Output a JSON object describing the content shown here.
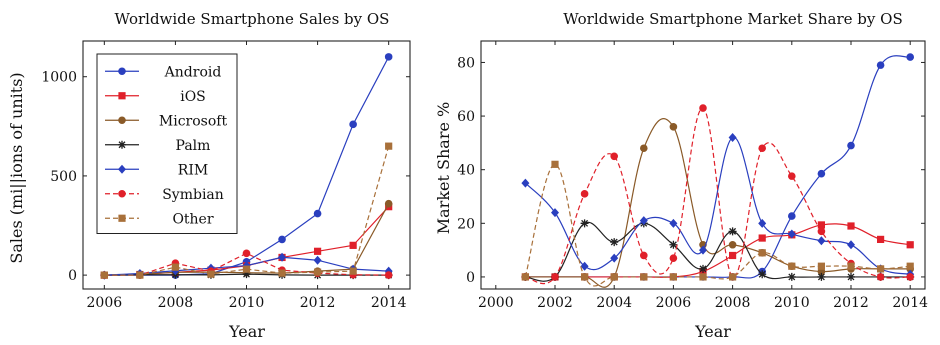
{
  "colors": {
    "Android": "#2a3fbf",
    "iOS": "#e0202a",
    "Microsoft": "#8a5a28",
    "Palm": "#222222",
    "RIM": "#2a3fbf",
    "Symbian": "#e0202a",
    "Other": "#a8703a"
  },
  "chart_data": [
    {
      "type": "line",
      "title": "Worldwide Smartphone Sales by OS",
      "xlabel": "Year",
      "ylabel": "Sales (mi||ions of units)",
      "xlim": [
        2005.4,
        2014.6
      ],
      "ylim": [
        -70,
        1180
      ],
      "xticks": [
        2006,
        2008,
        2010,
        2012,
        2014
      ],
      "yticks": [
        0,
        500,
        1000
      ],
      "grid": false,
      "legend": "top-left",
      "series": [
        {
          "name": "Android",
          "marker": "circle",
          "dash": "solid",
          "x": [
            2006,
            2007,
            2008,
            2009,
            2010,
            2011,
            2012,
            2013,
            2014
          ],
          "y": [
            0,
            0,
            0,
            7,
            67,
            180,
            310,
            760,
            1100
          ]
        },
        {
          "name": "iOS",
          "marker": "square",
          "dash": "solid",
          "x": [
            2006,
            2007,
            2008,
            2009,
            2010,
            2011,
            2012,
            2013,
            2014
          ],
          "y": [
            0,
            3,
            14,
            25,
            47,
            89,
            120,
            150,
            345
          ]
        },
        {
          "name": "Microsoft",
          "marker": "circle",
          "dash": "solid",
          "x": [
            2006,
            2007,
            2008,
            2009,
            2010,
            2011,
            2012,
            2013,
            2014
          ],
          "y": [
            0,
            5,
            14,
            15,
            12,
            10,
            20,
            30,
            360
          ]
        },
        {
          "name": "Palm",
          "marker": "star",
          "dash": "solid",
          "x": [
            2006,
            2007,
            2008,
            2009,
            2010,
            2011,
            2012,
            2013,
            2014
          ],
          "y": [
            0,
            2,
            2,
            1,
            5,
            1,
            0,
            0,
            0
          ]
        },
        {
          "name": "RIM",
          "marker": "diamond",
          "dash": "solid",
          "x": [
            2006,
            2007,
            2008,
            2009,
            2010,
            2011,
            2012,
            2013,
            2014
          ],
          "y": [
            0,
            8,
            22,
            35,
            48,
            90,
            75,
            30,
            20
          ]
        },
        {
          "name": "Symbian",
          "marker": "circle",
          "dash": "dashed",
          "x": [
            2006,
            2007,
            2008,
            2009,
            2010,
            2011,
            2012,
            2013,
            2014
          ],
          "y": [
            0,
            0,
            60,
            20,
            110,
            25,
            10,
            2,
            0
          ]
        },
        {
          "name": "Other",
          "marker": "square",
          "dash": "dashed",
          "x": [
            2006,
            2007,
            2008,
            2009,
            2010,
            2011,
            2012,
            2013,
            2014
          ],
          "y": [
            0,
            0,
            40,
            5,
            30,
            10,
            15,
            20,
            650
          ]
        }
      ]
    },
    {
      "type": "line",
      "title": "Worldwide Smartphone Market Share by OS",
      "xlabel": "Year",
      "ylabel": "Market Share %",
      "xlim": [
        1999.5,
        2014.5
      ],
      "ylim": [
        -4.5,
        88
      ],
      "xticks": [
        2000,
        2002,
        2004,
        2006,
        2008,
        2010,
        2012,
        2014
      ],
      "yticks": [
        0,
        20,
        40,
        60,
        80
      ],
      "grid": false,
      "legend": "none",
      "series": [
        {
          "name": "Android",
          "marker": "circle",
          "dash": "solid",
          "x": [
            2001,
            2002,
            2003,
            2004,
            2005,
            2006,
            2007,
            2008,
            2009,
            2010,
            2011,
            2012,
            2013,
            2014
          ],
          "y": [
            0,
            0,
            0,
            0,
            0,
            0,
            0,
            0,
            2,
            22.7,
            38.5,
            49,
            79,
            82
          ]
        },
        {
          "name": "iOS",
          "marker": "square",
          "dash": "solid",
          "x": [
            2001,
            2002,
            2003,
            2004,
            2005,
            2006,
            2007,
            2008,
            2009,
            2010,
            2011,
            2012,
            2013,
            2014
          ],
          "y": [
            0,
            0,
            0,
            0,
            0,
            0,
            2,
            8,
            14.5,
            15.7,
            19.4,
            19,
            14,
            12
          ]
        },
        {
          "name": "Microsoft",
          "marker": "circle",
          "dash": "solid",
          "x": [
            2001,
            2002,
            2003,
            2004,
            2005,
            2006,
            2007,
            2008,
            2009,
            2010,
            2011,
            2012,
            2013,
            2014
          ],
          "y": [
            0,
            0,
            0,
            0,
            48,
            56,
            12,
            12,
            9,
            4,
            2,
            3,
            3,
            3
          ]
        },
        {
          "name": "Palm",
          "marker": "star",
          "dash": "solid",
          "x": [
            2001,
            2002,
            2003,
            2004,
            2005,
            2006,
            2007,
            2008,
            2009,
            2010,
            2011,
            2012,
            2013,
            2014
          ],
          "y": [
            0,
            0,
            20,
            13,
            20,
            12,
            3,
            17,
            1,
            0,
            0,
            0,
            0,
            0
          ]
        },
        {
          "name": "RIM",
          "marker": "diamond",
          "dash": "solid",
          "x": [
            2001,
            2002,
            2003,
            2004,
            2005,
            2006,
            2007,
            2008,
            2009,
            2010,
            2011,
            2012,
            2013,
            2014
          ],
          "y": [
            35,
            24,
            4,
            7,
            21,
            20,
            10,
            52,
            20,
            16,
            13.5,
            12,
            3,
            1
          ]
        },
        {
          "name": "Symbian",
          "marker": "circle",
          "dash": "dashed",
          "x": [
            2001,
            2002,
            2003,
            2004,
            2005,
            2006,
            2007,
            2008,
            2009,
            2010,
            2011,
            2012,
            2013,
            2014
          ],
          "y": [
            0,
            0,
            31,
            45,
            8,
            7,
            63,
            0,
            48,
            37.6,
            17,
            5,
            0,
            0
          ]
        },
        {
          "name": "Other",
          "marker": "square",
          "dash": "dashed",
          "x": [
            2001,
            2002,
            2003,
            2004,
            2005,
            2006,
            2007,
            2008,
            2009,
            2010,
            2011,
            2012,
            2013,
            2014
          ],
          "y": [
            0,
            42,
            0,
            0,
            0,
            0,
            0,
            0,
            9,
            4,
            4,
            4,
            3,
            4
          ]
        }
      ]
    }
  ]
}
